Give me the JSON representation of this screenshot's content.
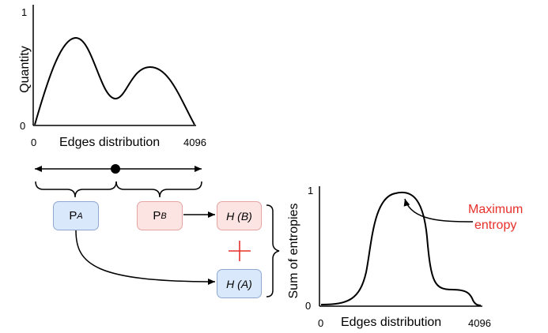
{
  "top_chart": {
    "ylabel": "Quantity",
    "y_top_tick": "1",
    "y_bottom_tick": "0",
    "x_start_tick": "0",
    "xlabel": "Edges distribution",
    "x_end_tick": "4096"
  },
  "boxes": {
    "pa_main": "P",
    "pa_sub": "A",
    "pb_main": "P",
    "pb_sub": "B",
    "hb": "H (B)",
    "ha": "H (A)"
  },
  "bottom_chart": {
    "ylabel": "Sum of entropies",
    "y_top_tick": "1",
    "y_bottom_tick": "0",
    "x_start_tick": "0",
    "xlabel": "Edges distribution",
    "x_end_tick": "4096",
    "annotation_line1": "Maximum",
    "annotation_line2": "entropy"
  },
  "colors": {
    "annotation": "#e8302a",
    "plus": "#e8302a",
    "box_blue": "#dae8fc",
    "box_pink": "#fce4e3"
  }
}
